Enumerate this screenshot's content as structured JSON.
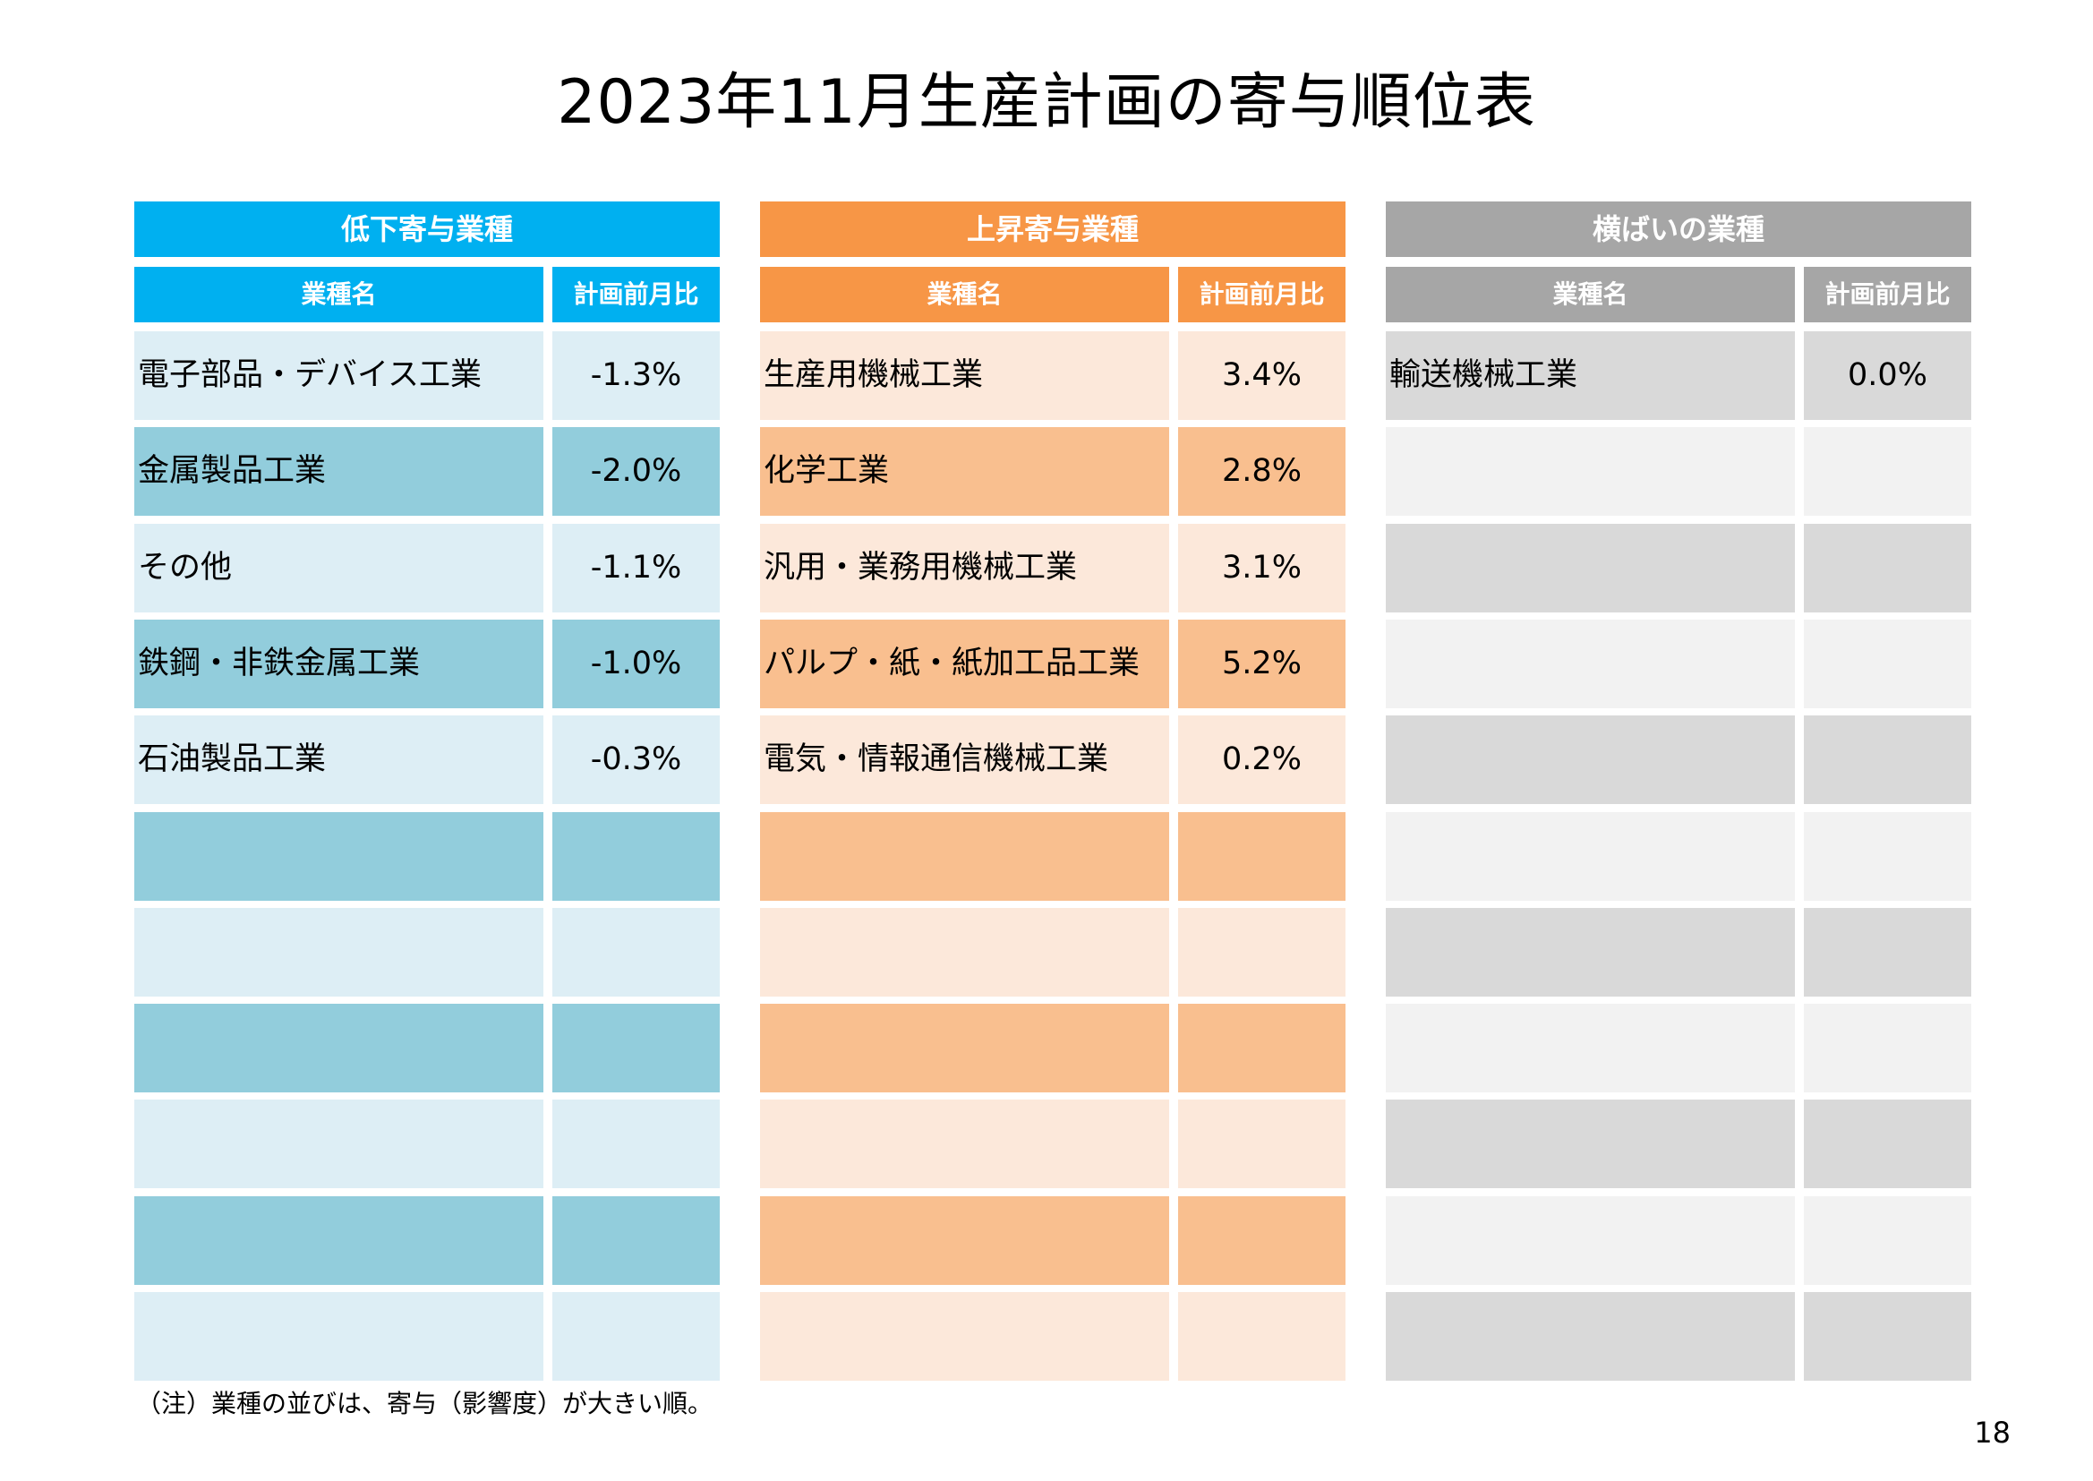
{
  "title": "2023年11月生産計画の寄与順位表",
  "note": "（注）業種の並びは、寄与（影響度）が大きい順。",
  "page_number": "18",
  "panels": [
    {
      "header": "低下寄与業種",
      "col_name": "業種名",
      "col_value": "計画前月比",
      "colors": {
        "header": "#00b0f0",
        "light": "#ddeef5",
        "dark": "#92cddc"
      },
      "rows": [
        {
          "name": "電子部品・デバイス工業",
          "value": "-1.3%"
        },
        {
          "name": "金属製品工業",
          "value": "-2.0%"
        },
        {
          "name": "その他",
          "value": "-1.1%"
        },
        {
          "name": "鉄鋼・非鉄金属工業",
          "value": "-1.0%"
        },
        {
          "name": "石油製品工業",
          "value": "-0.3%"
        },
        {
          "name": "",
          "value": ""
        },
        {
          "name": "",
          "value": ""
        },
        {
          "name": "",
          "value": ""
        },
        {
          "name": "",
          "value": ""
        },
        {
          "name": "",
          "value": ""
        },
        {
          "name": "",
          "value": ""
        }
      ]
    },
    {
      "header": "上昇寄与業種",
      "col_name": "業種名",
      "col_value": "計画前月比",
      "colors": {
        "header": "#f79646",
        "light": "#fce8da",
        "dark": "#f9bf8f"
      },
      "rows": [
        {
          "name": "生産用機械工業",
          "value": "3.4%"
        },
        {
          "name": "化学工業",
          "value": "2.8%"
        },
        {
          "name": "汎用・業務用機械工業",
          "value": "3.1%"
        },
        {
          "name": "パルプ・紙・紙加工品工業",
          "value": "5.2%"
        },
        {
          "name": "電気・情報通信機械工業",
          "value": "0.2%"
        },
        {
          "name": "",
          "value": ""
        },
        {
          "name": "",
          "value": ""
        },
        {
          "name": "",
          "value": ""
        },
        {
          "name": "",
          "value": ""
        },
        {
          "name": "",
          "value": ""
        },
        {
          "name": "",
          "value": ""
        }
      ]
    },
    {
      "header": "横ばいの業種",
      "col_name": "業種名",
      "col_value": "計画前月比",
      "colors": {
        "header": "#a6a6a6",
        "light": "#d9d9d9",
        "dark": "#f2f2f2"
      },
      "rows": [
        {
          "name": "輸送機械工業",
          "value": "0.0%"
        },
        {
          "name": "",
          "value": ""
        },
        {
          "name": "",
          "value": ""
        },
        {
          "name": "",
          "value": ""
        },
        {
          "name": "",
          "value": ""
        },
        {
          "name": "",
          "value": ""
        },
        {
          "name": "",
          "value": ""
        },
        {
          "name": "",
          "value": ""
        },
        {
          "name": "",
          "value": ""
        },
        {
          "name": "",
          "value": ""
        },
        {
          "name": "",
          "value": ""
        }
      ]
    }
  ]
}
